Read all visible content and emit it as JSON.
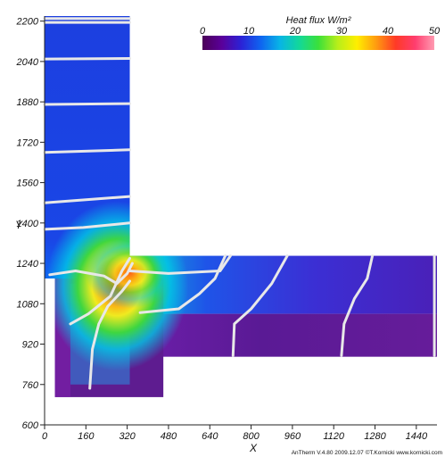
{
  "chart_data": {
    "type": "heatmap",
    "xlabel": "X",
    "ylabel": "Y",
    "xlim": [
      0,
      1520
    ],
    "ylim": [
      600,
      2220
    ],
    "x_ticks": [
      0,
      160,
      320,
      480,
      640,
      800,
      960,
      1120,
      1280,
      1440
    ],
    "y_ticks": [
      600,
      760,
      920,
      1080,
      1240,
      1400,
      1560,
      1720,
      1880,
      2040,
      2200
    ],
    "colorbar": {
      "title": "Heat flux W/m²",
      "min": 0,
      "max": 50,
      "ticks": [
        0,
        10,
        20,
        30,
        40,
        50
      ],
      "colors": [
        "#4b0057",
        "#5a009a",
        "#2b22d6",
        "#0f63f0",
        "#08b4e6",
        "#12d89a",
        "#3be03a",
        "#b8ee1a",
        "#ffee00",
        "#ff9a10",
        "#ff3a26",
        "#ff3d6e",
        "#ff9bb2"
      ]
    },
    "field_colors": {
      "low": "#5a1e86",
      "mid": "#1c3fe0",
      "cyan": "#00c8e6",
      "green": "#3ed640",
      "yellow": "#f0ea20",
      "orange": "#ff9a10",
      "red": "#ff3020"
    },
    "regions": [
      {
        "name": "vertical-column",
        "x": [
          0,
          330
        ],
        "y": [
          1180,
          2220
        ],
        "level": "mid"
      },
      {
        "name": "horizontal-beam",
        "x": [
          330,
          1520
        ],
        "y": [
          1040,
          1270
        ],
        "level": "mid"
      },
      {
        "name": "lower-slab",
        "x": [
          380,
          1520
        ],
        "y": [
          870,
          1040
        ],
        "level": "low"
      },
      {
        "name": "lower-stem",
        "x": [
          40,
          460
        ],
        "y": [
          710,
          1180
        ],
        "level": "low"
      }
    ],
    "hotspot": {
      "x": 280,
      "y": 1150,
      "peak": 50
    },
    "isolines": [
      [
        [
          0,
          2210
        ],
        [
          330,
          2210
        ]
      ],
      [
        [
          0,
          2195
        ],
        [
          330,
          2195
        ]
      ],
      [
        [
          0,
          2050
        ],
        [
          330,
          2052
        ]
      ],
      [
        [
          0,
          1870
        ],
        [
          330,
          1873
        ]
      ],
      [
        [
          0,
          1680
        ],
        [
          330,
          1690
        ]
      ],
      [
        [
          0,
          1480
        ],
        [
          330,
          1505
        ]
      ],
      [
        [
          0,
          1375
        ],
        [
          150,
          1382
        ],
        [
          330,
          1400
        ]
      ],
      [
        [
          20,
          1195
        ],
        [
          120,
          1210
        ],
        [
          230,
          1190
        ],
        [
          280,
          1160
        ],
        [
          320,
          1200
        ],
        [
          340,
          1240
        ]
      ],
      [
        [
          100,
          1000
        ],
        [
          170,
          1040
        ],
        [
          255,
          1110
        ],
        [
          300,
          1210
        ],
        [
          330,
          1260
        ]
      ],
      [
        [
          175,
          745
        ],
        [
          185,
          900
        ],
        [
          210,
          1000
        ],
        [
          245,
          1070
        ],
        [
          300,
          1130
        ],
        [
          330,
          1170
        ]
      ],
      [
        [
          330,
          1210
        ],
        [
          480,
          1200
        ],
        [
          680,
          1210
        ],
        [
          720,
          1270
        ]
      ],
      [
        [
          370,
          1045
        ],
        [
          520,
          1060
        ],
        [
          600,
          1120
        ],
        [
          660,
          1180
        ],
        [
          700,
          1270
        ]
      ],
      [
        [
          730,
          875
        ],
        [
          735,
          1000
        ],
        [
          800,
          1060
        ],
        [
          880,
          1160
        ],
        [
          940,
          1270
        ]
      ],
      [
        [
          1150,
          875
        ],
        [
          1160,
          1000
        ],
        [
          1200,
          1100
        ],
        [
          1250,
          1180
        ],
        [
          1270,
          1270
        ]
      ],
      [
        [
          1510,
          875
        ],
        [
          1510,
          1270
        ]
      ]
    ]
  },
  "credit": "AnTherm V.4.80 2009.12.07 ©T.Kornicki www.kornicki.com"
}
